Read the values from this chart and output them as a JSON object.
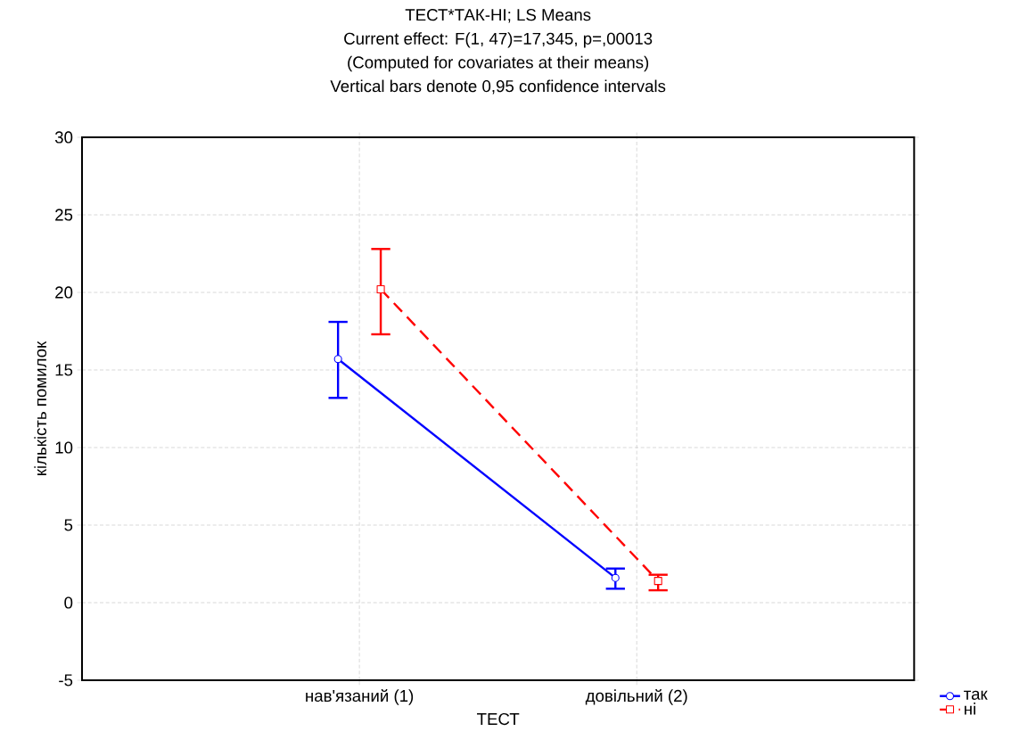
{
  "chart_data": {
    "type": "line",
    "title": "ТЕСТ*ТАК-НІ; LS Means",
    "subtitle": "Current effect: F(1, 47)=17,345, p=,00013",
    "annotations": [
      "(Computed for covariates at their means)",
      "Vertical bars denote 0,95 confidence intervals"
    ],
    "xlabel": "ТЕСТ",
    "ylabel": "кількість помилок",
    "categories": [
      "нав'язаний (1)",
      "довільний (2)"
    ],
    "series": [
      {
        "name": "так",
        "color": "#0000ff",
        "values": [
          15.7,
          1.6
        ],
        "errors": [
          [
            13.2,
            18.1
          ],
          [
            0.9,
            2.2
          ]
        ],
        "marker": "circle",
        "line_style": "solid"
      },
      {
        "name": "ні",
        "color": "#ff0000",
        "values": [
          20.2,
          1.4
        ],
        "errors": [
          [
            17.3,
            22.8
          ],
          [
            0.8,
            1.8
          ]
        ],
        "marker": "square",
        "line_style": "dashed"
      }
    ],
    "ylim": [
      -5,
      30
    ],
    "yticks": [
      -5,
      0,
      5,
      10,
      15,
      20,
      25,
      30
    ],
    "grid": true,
    "legend": "bottom right"
  }
}
